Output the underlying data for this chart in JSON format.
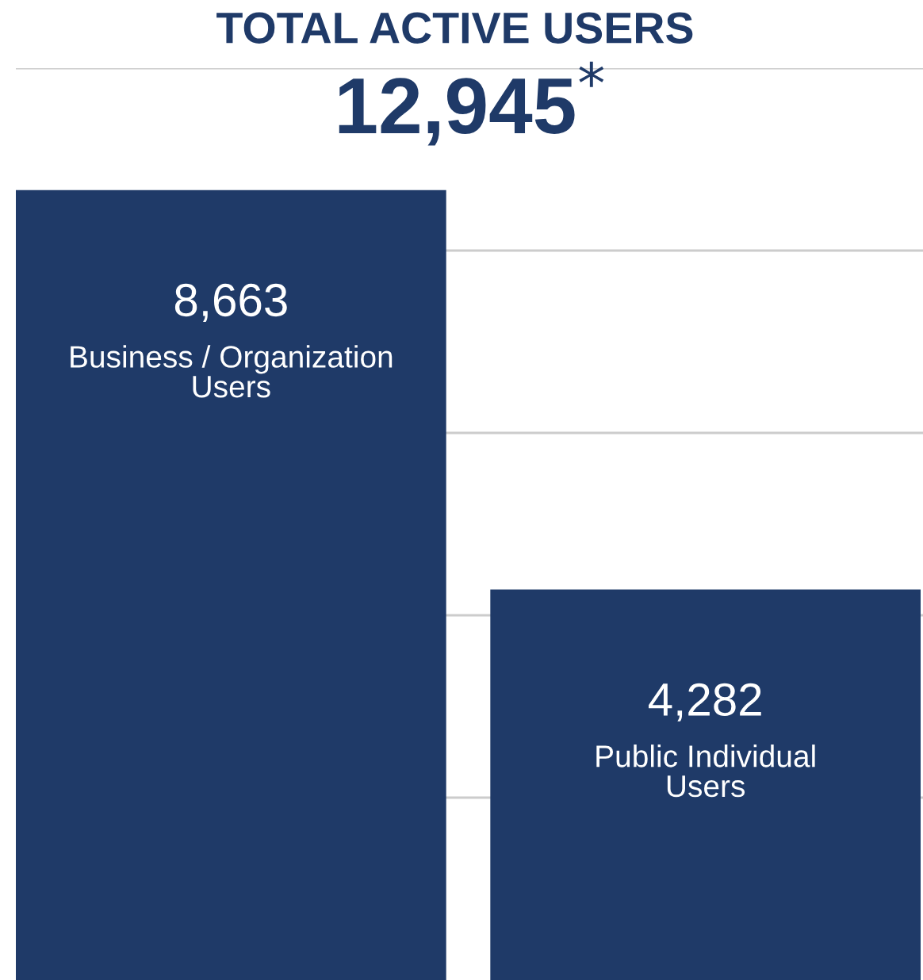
{
  "chart_data": {
    "type": "bar",
    "title": "TOTAL ACTIVE USERS",
    "subtitle": "12,945$^{*}$",
    "categories": [
      "Business / Organization\nUsers",
      "Public Individual\nUsers"
    ],
    "values": [
      8663,
      4282
    ],
    "value_labels": [
      "8,663",
      "4,282"
    ],
    "color": "#1f3a68",
    "ylim": [
      0,
      10000
    ],
    "yticks": [
      2000,
      4000,
      6000,
      8000,
      10000
    ],
    "tick_labels": false,
    "grid": "y",
    "legend": false
  }
}
